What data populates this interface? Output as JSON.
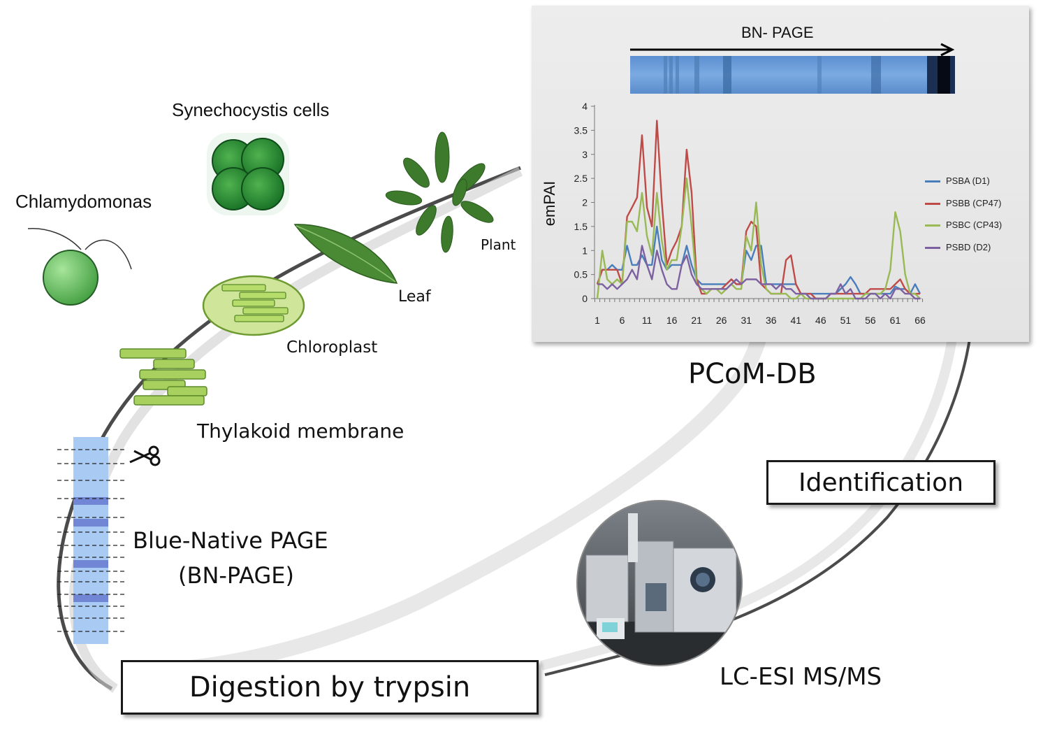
{
  "labels": {
    "synechocystis": "Synechocystis   cells",
    "chlamydomonas": "Chlamydomonas",
    "plant": "Plant",
    "leaf": "Leaf",
    "chloroplast": "Chloroplast",
    "thylakoid": "Thylakoid membrane",
    "bn_page_line1": "Blue-Native PAGE",
    "bn_page_line2": "(BN-PAGE)",
    "digestion": "Digestion by trypsin",
    "lc_esi": "LC-ESI MS/MS",
    "identification": "Identification",
    "pcom_db": "PCoM-DB",
    "gel_title": "BN- PAGE"
  },
  "colors": {
    "psba": "#4a7ebb",
    "psbb": "#be4b48",
    "psbc": "#98b954",
    "psbd": "#7d60a0",
    "gel_blue": "#6f9fd8",
    "green": "#2e9e3a"
  },
  "icons": [
    "scissors-icon",
    "lc-ms-instrument-photo"
  ],
  "chart_data": {
    "type": "line",
    "xlabel": "",
    "ylabel": "emPAI",
    "ylim": [
      0,
      4
    ],
    "yticks": [
      "0",
      "0.5",
      "1",
      "1.5",
      "2",
      "2.5",
      "3",
      "3.5",
      "4"
    ],
    "xticks": [
      "1",
      "6",
      "11",
      "16",
      "21",
      "26",
      "31",
      "36",
      "41",
      "46",
      "51",
      "56",
      "61",
      "66"
    ],
    "x": [
      1,
      2,
      3,
      4,
      5,
      6,
      7,
      8,
      9,
      10,
      11,
      12,
      13,
      14,
      15,
      16,
      17,
      18,
      19,
      20,
      21,
      22,
      23,
      24,
      25,
      26,
      27,
      28,
      29,
      30,
      31,
      32,
      33,
      34,
      35,
      36,
      37,
      38,
      39,
      40,
      41,
      42,
      43,
      44,
      45,
      46,
      47,
      48,
      49,
      50,
      51,
      52,
      53,
      54,
      55,
      56,
      57,
      58,
      59,
      60,
      61,
      62,
      63,
      64,
      65,
      66
    ],
    "series": [
      {
        "name": "PSBA (D1)",
        "color": "#4a7ebb",
        "values": [
          0.3,
          0.6,
          0.6,
          0.7,
          0.6,
          0.6,
          1.1,
          0.7,
          0.7,
          0.9,
          0.7,
          0.7,
          1.5,
          0.8,
          0.6,
          0.7,
          0.7,
          0.7,
          1.1,
          0.7,
          0.4,
          0.3,
          0.3,
          0.3,
          0.3,
          0.3,
          0.3,
          0.4,
          0.3,
          0.3,
          1.0,
          0.8,
          1.1,
          1.1,
          0.3,
          0.3,
          0.3,
          0.3,
          0.3,
          0.3,
          0.3,
          0.1,
          0.1,
          0.1,
          0.1,
          0.1,
          0.1,
          0.1,
          0.1,
          0.2,
          0.3,
          0.45,
          0.3,
          0.1,
          0.1,
          0.1,
          0.1,
          0.1,
          0.1,
          0.1,
          0.25,
          0.2,
          0.2,
          0.1,
          0.3,
          0.1
        ]
      },
      {
        "name": "PSBB (CP47)",
        "color": "#be4b48",
        "values": [
          0.3,
          0.6,
          0.6,
          0.6,
          0.6,
          0.3,
          1.7,
          1.9,
          2.1,
          3.4,
          1.9,
          1.5,
          3.7,
          2.0,
          0.7,
          1.0,
          1.2,
          1.5,
          3.1,
          2.2,
          0.4,
          0.1,
          0.1,
          0.2,
          0.2,
          0.2,
          0.3,
          0.4,
          0.3,
          0.3,
          1.4,
          1.6,
          1.5,
          0.3,
          0.2,
          0.1,
          0.1,
          0.1,
          0.8,
          0.9,
          0.3,
          0.1,
          0.1,
          0.1,
          0.0,
          0.0,
          0.0,
          0.1,
          0.1,
          0.1,
          0.1,
          0.1,
          0.1,
          0.1,
          0.1,
          0.2,
          0.2,
          0.2,
          0.2,
          0.2,
          0.3,
          0.4,
          0.2,
          0.1,
          0.1,
          0.1
        ]
      },
      {
        "name": "PSBC (CP43)",
        "color": "#98b954",
        "values": [
          0.0,
          1.0,
          0.4,
          0.3,
          0.4,
          0.3,
          1.6,
          1.6,
          1.4,
          2.2,
          1.3,
          0.9,
          2.2,
          1.2,
          0.6,
          0.8,
          0.8,
          1.5,
          2.5,
          1.5,
          0.3,
          0.2,
          0.1,
          0.2,
          0.2,
          0.1,
          0.2,
          0.3,
          0.2,
          0.2,
          1.3,
          1.0,
          2.0,
          0.7,
          0.2,
          0.1,
          0.1,
          0.1,
          0.1,
          0.0,
          0.0,
          0.1,
          0.0,
          0.0,
          0.0,
          0.0,
          0.0,
          0.0,
          0.0,
          0.0,
          0.0,
          0.0,
          0.0,
          0.0,
          0.1,
          0.1,
          0.1,
          0.1,
          0.2,
          0.6,
          1.8,
          1.4,
          0.5,
          0.1,
          0.1,
          0.0
        ]
      },
      {
        "name": "PSBD (D2)",
        "color": "#7d60a0",
        "values": [
          0.3,
          0.3,
          0.2,
          0.3,
          0.2,
          0.3,
          0.4,
          0.6,
          0.4,
          1.1,
          0.7,
          0.4,
          1.0,
          0.6,
          0.3,
          0.2,
          0.2,
          0.7,
          0.9,
          0.5,
          0.3,
          0.2,
          0.2,
          0.2,
          0.2,
          0.2,
          0.2,
          0.3,
          0.4,
          0.3,
          0.4,
          0.4,
          0.4,
          0.3,
          0.3,
          0.3,
          0.2,
          0.3,
          0.2,
          0.2,
          0.1,
          0.1,
          0.1,
          0.0,
          0.0,
          0.0,
          0.0,
          0.1,
          0.1,
          0.3,
          0.1,
          0.2,
          0.0,
          0.0,
          0.0,
          0.1,
          0.1,
          0.0,
          0.1,
          0.0,
          0.2,
          0.2,
          0.1,
          0.1,
          0.0,
          0.0
        ]
      }
    ],
    "legend": "right",
    "grid": false
  }
}
